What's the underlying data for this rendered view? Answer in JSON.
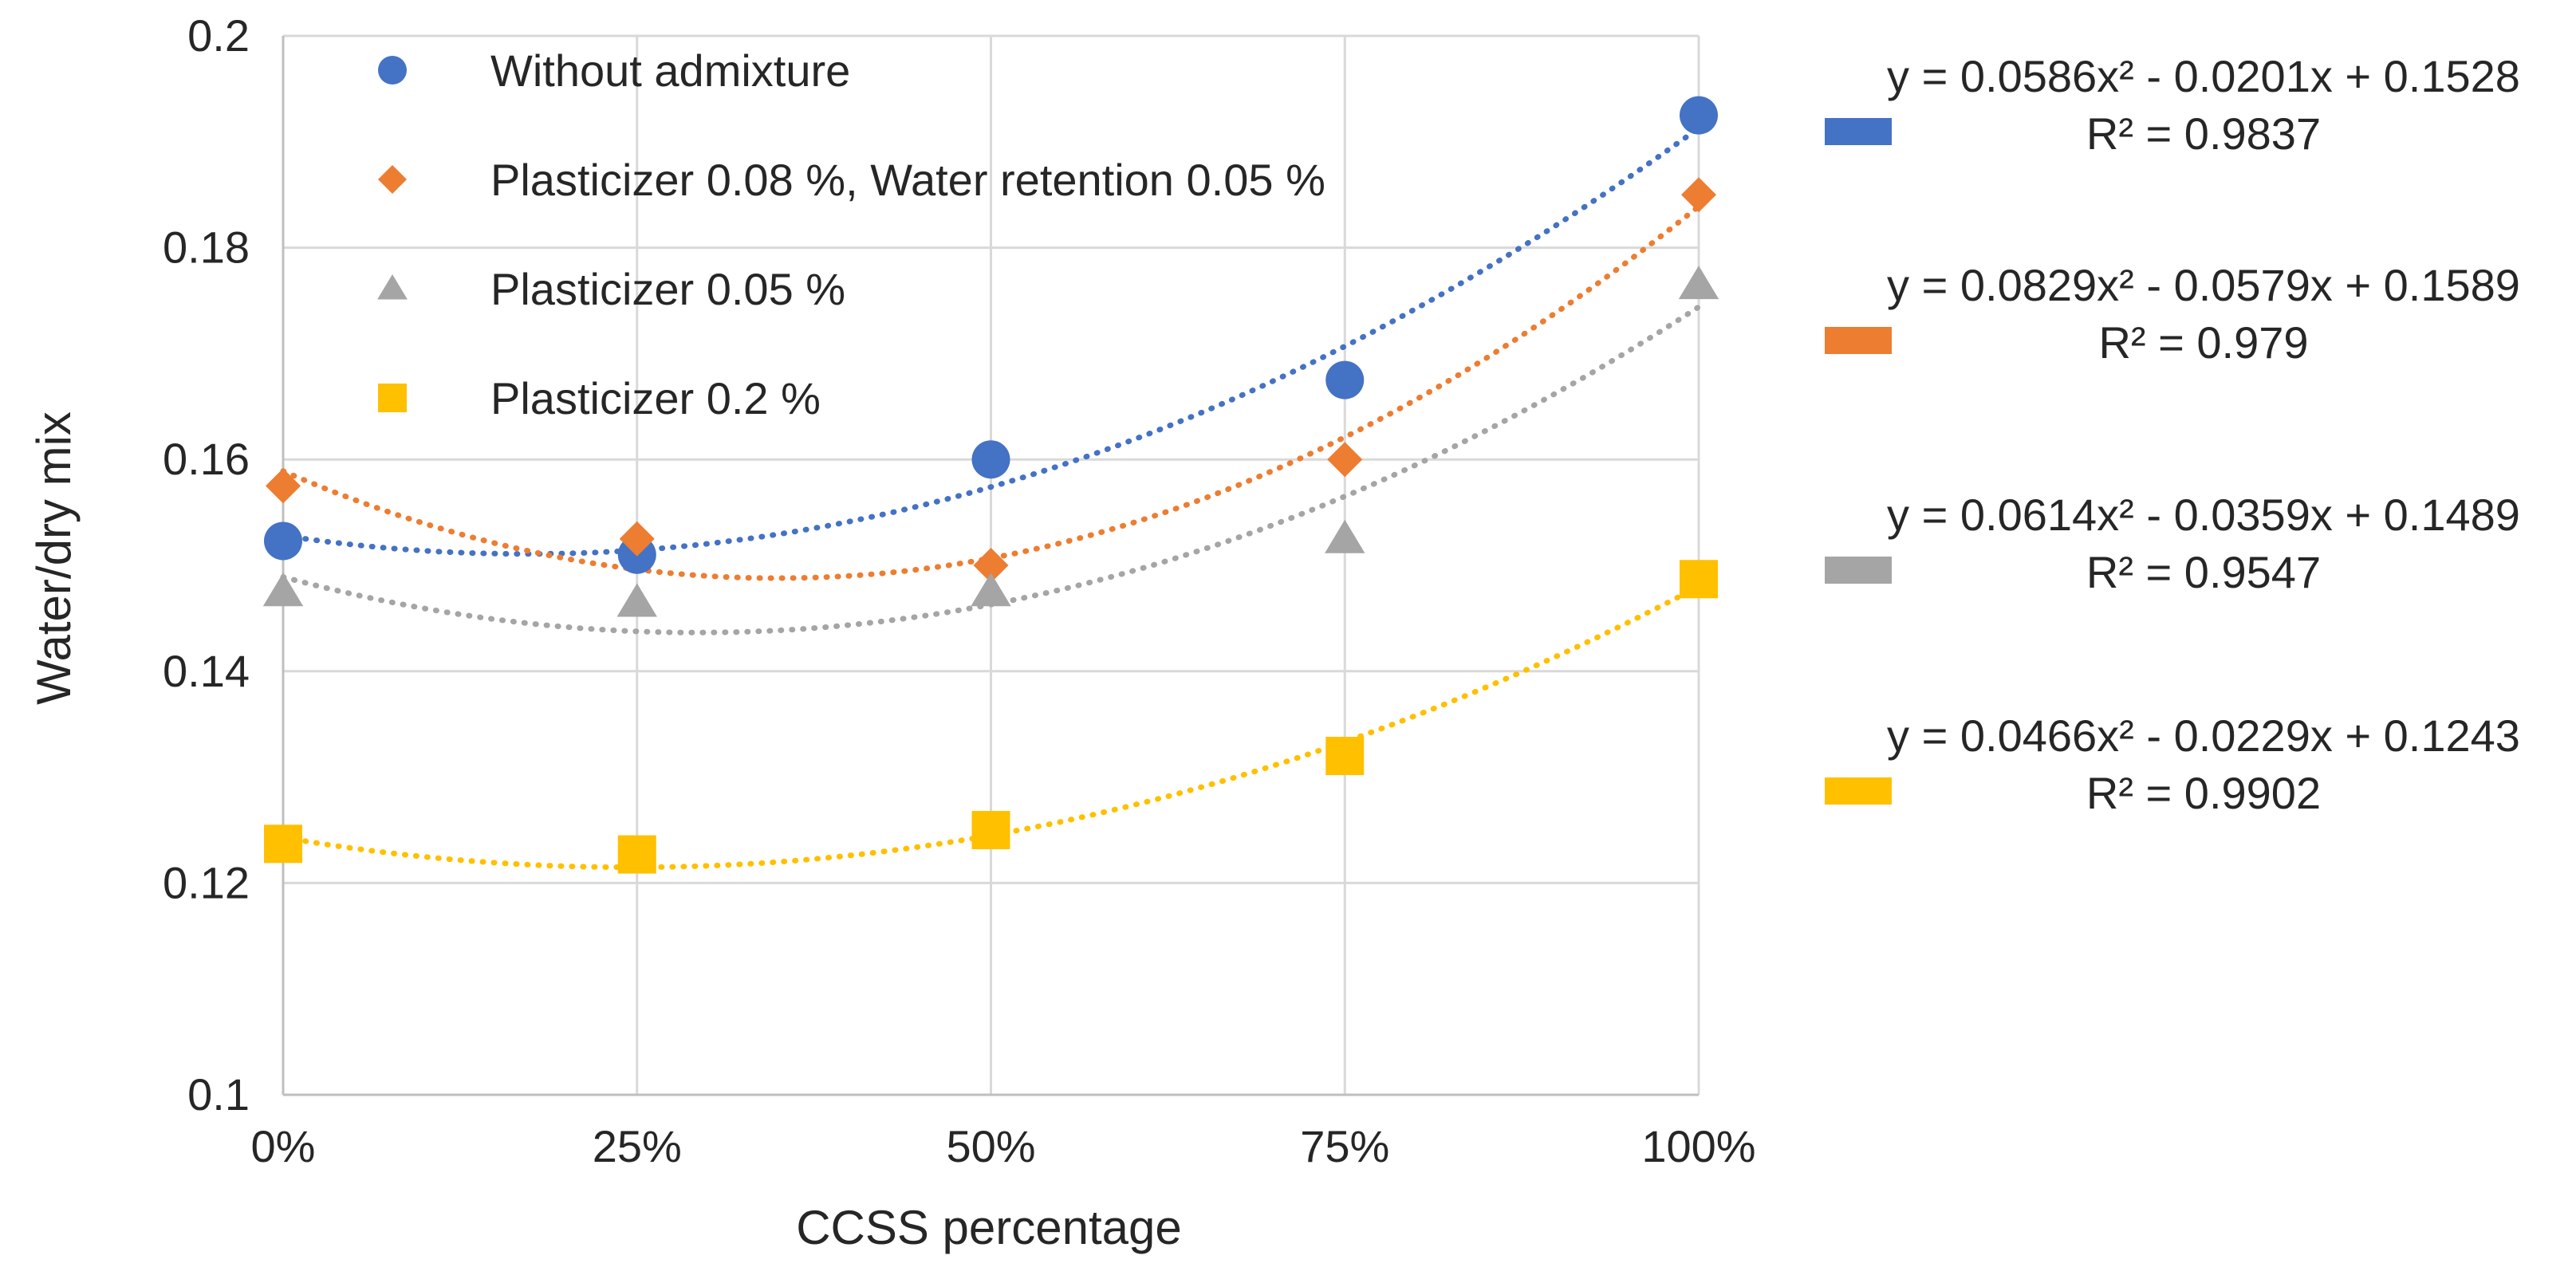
{
  "chart_data": {
    "type": "scatter",
    "title": "",
    "xlabel": "CCSS percentage",
    "ylabel": "Water/dry mix",
    "categories": [
      "0%",
      "25%",
      "50%",
      "75%",
      "100%"
    ],
    "x": [
      0,
      0.25,
      0.5,
      0.75,
      1.0
    ],
    "ylim": [
      0.1,
      0.2
    ],
    "yticks": [
      0.1,
      0.12,
      0.14,
      0.16,
      0.18,
      0.2
    ],
    "ytick_labels": [
      "0.1",
      "0.12",
      "0.14",
      "0.16",
      "0.18",
      "0.2"
    ],
    "grid": true,
    "legend_position": "top-left inside",
    "series": [
      {
        "name": "Without admixture",
        "marker": "circle",
        "color": "#4472C4",
        "values": [
          0.1523,
          0.151,
          0.16,
          0.1675,
          0.1925
        ],
        "trendline": {
          "type": "polynomial-2",
          "a": 0.0586,
          "b": -0.0201,
          "c": 0.1528,
          "equation": "y = 0.0586x² - 0.0201x + 0.1528",
          "r2": "R² = 0.9837"
        }
      },
      {
        "name": "Plasticizer 0.08 %, Water retention 0.05 %",
        "marker": "diamond",
        "color": "#ED7D31",
        "values": [
          0.1575,
          0.1525,
          0.15,
          0.16,
          0.185
        ],
        "trendline": {
          "type": "polynomial-2",
          "a": 0.0829,
          "b": -0.0579,
          "c": 0.1589,
          "equation": "y = 0.0829x² - 0.0579x + 0.1589",
          "r2": "R² = 0.979"
        }
      },
      {
        "name": "Plasticizer 0.05 %",
        "marker": "triangle",
        "color": "#A5A5A5",
        "values": [
          0.1475,
          0.1465,
          0.1475,
          0.1525,
          0.1765
        ],
        "trendline": {
          "type": "polynomial-2",
          "a": 0.0614,
          "b": -0.0359,
          "c": 0.1489,
          "equation": "y = 0.0614x² - 0.0359x + 0.1489",
          "r2": "R² = 0.9547"
        }
      },
      {
        "name": "Plasticizer 0.2 %",
        "marker": "square",
        "color": "#FFC000",
        "values": [
          0.1237,
          0.1227,
          0.125,
          0.132,
          0.1487
        ],
        "trendline": {
          "type": "polynomial-2",
          "a": 0.0466,
          "b": -0.0229,
          "c": 0.1243,
          "equation": "y = 0.0466x² - 0.0229x + 0.1243",
          "r2": "R² = 0.9902"
        }
      }
    ]
  }
}
